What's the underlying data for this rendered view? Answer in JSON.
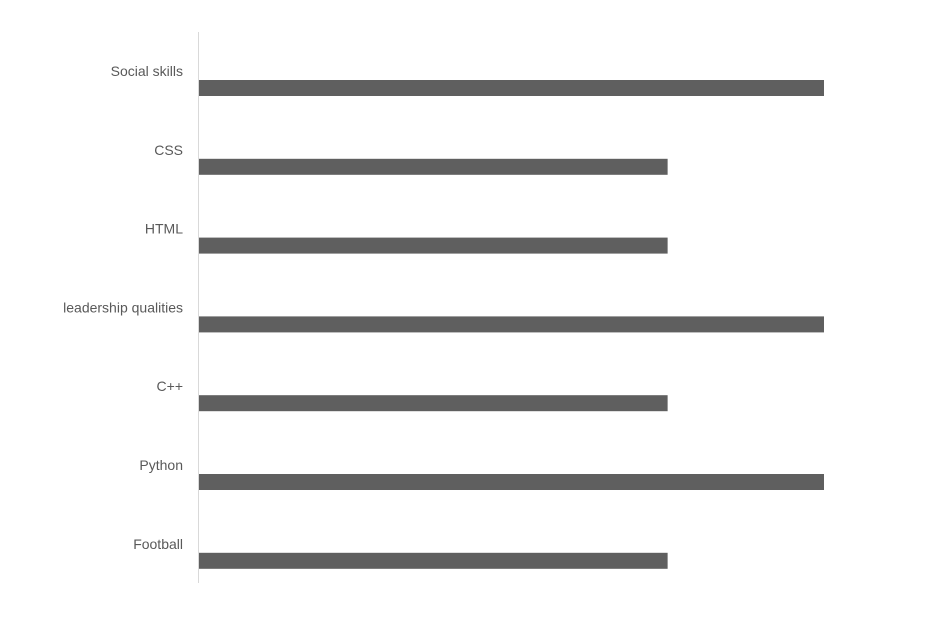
{
  "chart_data": {
    "type": "bar",
    "orientation": "horizontal",
    "categories": [
      "Social skills",
      "CSS",
      "HTML",
      "leadership qualities",
      "C++",
      "Python",
      "Football"
    ],
    "values": [
      4,
      3,
      3,
      4,
      3,
      4,
      3
    ],
    "xlim": [
      0,
      4
    ],
    "title": "",
    "xlabel": "",
    "ylabel": "",
    "grid": false,
    "legend": "none",
    "bar_color": "#5f5f5f",
    "axis_color": "#d9d9d9",
    "label_color": "#595959"
  }
}
